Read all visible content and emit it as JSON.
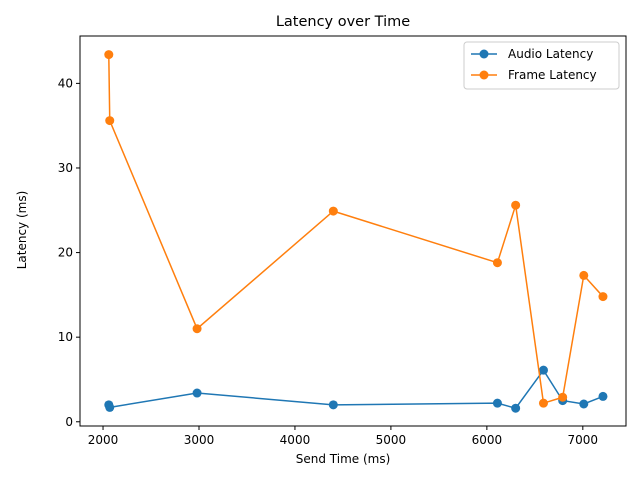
{
  "chart_data": {
    "type": "line",
    "title": "Latency over Time",
    "xlabel": "Send Time (ms)",
    "ylabel": "Latency (ms)",
    "xlim": [
      1760,
      7450
    ],
    "ylim": [
      -0.5,
      45.6
    ],
    "xticks": [
      2000,
      3000,
      4000,
      5000,
      6000,
      7000
    ],
    "yticks": [
      0,
      10,
      20,
      30,
      40
    ],
    "grid": false,
    "legend_position": "top-right",
    "series": [
      {
        "name": "Audio Latency",
        "color": "#1f77b4",
        "x": [
          2060,
          2070,
          2980,
          4400,
          6110,
          6300,
          6590,
          6790,
          7010,
          7210
        ],
        "y": [
          2.0,
          1.7,
          3.4,
          2.0,
          2.2,
          1.6,
          6.1,
          2.5,
          2.1,
          3.0
        ]
      },
      {
        "name": "Frame Latency",
        "color": "#ff7f0e",
        "x": [
          2060,
          2070,
          2980,
          4400,
          6110,
          6300,
          6590,
          6790,
          7010,
          7210
        ],
        "y": [
          43.4,
          35.6,
          11.0,
          24.9,
          18.8,
          25.6,
          2.2,
          2.9,
          17.3,
          14.8
        ]
      }
    ]
  }
}
